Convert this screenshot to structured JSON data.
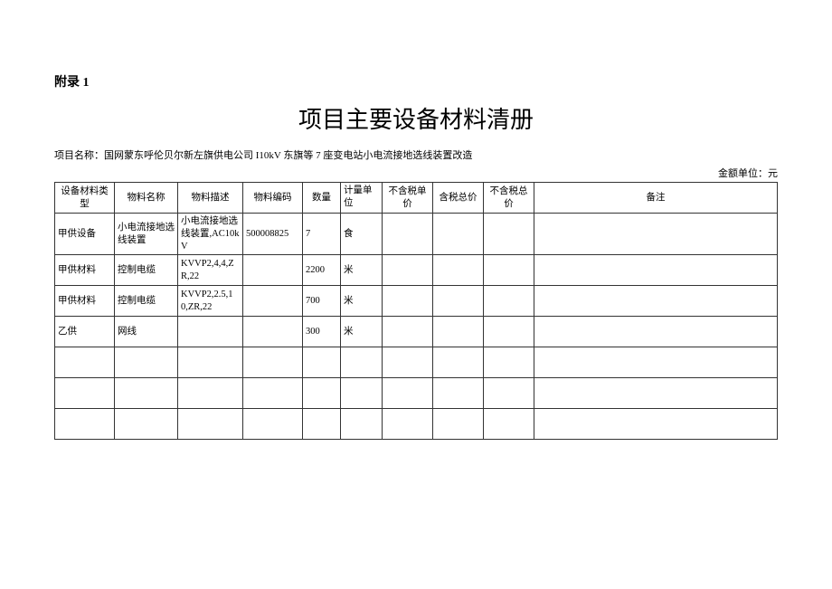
{
  "appendix_label": "附录 1",
  "doc_title": "项目主要设备材料清册",
  "project_label": "项目名称：",
  "project_name": "国网蒙东呼伦贝尔新左旗供电公司 I10kV 东旗等 7 座变电站小电流接地选线装置改造",
  "unit_label": "金额单位：元",
  "columns": {
    "type": "设备材料类型",
    "name": "物料名称",
    "desc": "物料描述",
    "code": "物料编码",
    "qty": "数量",
    "unit": "计量单位",
    "price_ex": "不含税单价",
    "price_in_total": "含税总价",
    "price_ex_total": "不含税总价",
    "remark": "备注"
  },
  "rows": [
    {
      "type": "甲供设备",
      "name": "小电流接地选线装置",
      "desc": "小电流接地选线装置,AC10kV",
      "code": "500008825",
      "qty": "7",
      "unit": "食",
      "p1": "",
      "p2": "",
      "p3": "",
      "remark": ""
    },
    {
      "type": "甲供材料",
      "name": "控制电缆",
      "desc": "KVVP2,4,4,ZR,22",
      "code": "",
      "qty": "2200",
      "unit": "米",
      "p1": "",
      "p2": "",
      "p3": "",
      "remark": ""
    },
    {
      "type": "甲供材料",
      "name": "控制电缆",
      "desc": "KVVP2,2.5,10,ZR,22",
      "code": "",
      "qty": "700",
      "unit": "米",
      "p1": "",
      "p2": "",
      "p3": "",
      "remark": ""
    },
    {
      "type": "乙供",
      "name": "网线",
      "desc": "",
      "code": "",
      "qty": "300",
      "unit": "米",
      "p1": "",
      "p2": "",
      "p3": "",
      "remark": ""
    },
    {
      "type": "",
      "name": "",
      "desc": "",
      "code": "",
      "qty": "",
      "unit": "",
      "p1": "",
      "p2": "",
      "p3": "",
      "remark": ""
    },
    {
      "type": "",
      "name": "",
      "desc": "",
      "code": "",
      "qty": "",
      "unit": "",
      "p1": "",
      "p2": "",
      "p3": "",
      "remark": ""
    },
    {
      "type": "",
      "name": "",
      "desc": "",
      "code": "",
      "qty": "",
      "unit": "",
      "p1": "",
      "p2": "",
      "p3": "",
      "remark": ""
    }
  ]
}
